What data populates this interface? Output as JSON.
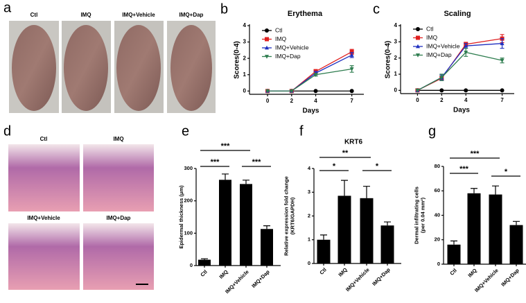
{
  "panel_labels": [
    "a",
    "b",
    "c",
    "d",
    "e",
    "f",
    "g"
  ],
  "photos_a": [
    "Ctl",
    "IMQ",
    "IMQ+Vehicle",
    "IMQ+Dap"
  ],
  "photos_d": [
    "Ctl",
    "IMQ",
    "IMQ+Vehicle",
    "IMQ+Dap"
  ],
  "chart_data": [
    {
      "type": "line",
      "title": "Erythema",
      "x_label": "Days",
      "y_label": "Scores(0-4)",
      "x": [
        0,
        2,
        4,
        7
      ],
      "xlim": [
        -1.5,
        8
      ],
      "xticks": [
        0,
        2,
        4,
        7
      ],
      "ylim": [
        -0.2,
        4
      ],
      "yticks": [
        0,
        1,
        2,
        3,
        4
      ],
      "series": [
        {
          "name": "Ctl",
          "color": "#000000",
          "marker": "circle",
          "values": [
            0,
            0,
            0,
            0
          ],
          "errors": [
            0,
            0,
            0,
            0
          ]
        },
        {
          "name": "IMQ",
          "color": "#e02020",
          "marker": "square",
          "values": [
            0,
            0,
            1.2,
            2.4
          ],
          "errors": [
            0,
            0,
            0.12,
            0.15
          ]
        },
        {
          "name": "IMQ+Vehicle",
          "color": "#2030c0",
          "marker": "triangle",
          "values": [
            0,
            0,
            1.1,
            2.2
          ],
          "errors": [
            0,
            0,
            0.1,
            0.15
          ]
        },
        {
          "name": "IMQ+Dap",
          "color": "#2e7d4f",
          "marker": "triangle-down",
          "values": [
            0,
            0,
            1.0,
            1.35
          ],
          "errors": [
            0,
            0,
            0.08,
            0.2
          ]
        }
      ]
    },
    {
      "type": "line",
      "title": "Scaling",
      "x_label": "Days",
      "y_label": "Scores(0-4)",
      "x": [
        0,
        2,
        4,
        7
      ],
      "xlim": [
        -1.4,
        8
      ],
      "xticks": [
        0,
        2,
        4,
        7
      ],
      "ylim": [
        -0.2,
        4
      ],
      "yticks": [
        0,
        1,
        2,
        3,
        4
      ],
      "series": [
        {
          "name": "Ctl",
          "color": "#000000",
          "marker": "circle",
          "values": [
            0,
            0,
            0,
            0
          ],
          "errors": [
            0,
            0,
            0,
            0
          ]
        },
        {
          "name": "IMQ",
          "color": "#e02020",
          "marker": "square",
          "values": [
            0,
            0.75,
            2.85,
            3.2
          ],
          "errors": [
            0,
            0.12,
            0.12,
            0.25
          ]
        },
        {
          "name": "IMQ+Vehicle",
          "color": "#2030c0",
          "marker": "triangle",
          "values": [
            0,
            0.8,
            2.75,
            2.9
          ],
          "errors": [
            0,
            0.15,
            0.15,
            0.3
          ]
        },
        {
          "name": "IMQ+Dap",
          "color": "#2e7d4f",
          "marker": "triangle-down",
          "values": [
            0,
            0.8,
            2.35,
            1.85
          ],
          "errors": [
            0,
            0.2,
            0.25,
            0.15
          ]
        }
      ]
    },
    {
      "type": "bar",
      "y_label": [
        "Epidermal thickness (μm)"
      ],
      "color": "#000000",
      "categories": [
        "Ctl",
        "IMQ",
        "IMQ+Vehicle",
        "IMQ+Dap"
      ],
      "values": [
        18,
        265,
        252,
        113
      ],
      "errors": [
        3,
        18,
        12,
        10
      ],
      "ylim": [
        0,
        300
      ],
      "yticks": [
        0,
        100,
        200,
        300
      ],
      "significance": [
        "***",
        "***",
        "***"
      ]
    },
    {
      "type": "bar",
      "title": "KRT6",
      "y_label": [
        "Relative expression fold change",
        "(KRT6/GAPDH)"
      ],
      "color": "#000000",
      "categories": [
        "Ctl",
        "IMQ",
        "IMQ+Vehicle",
        "IMQ+Dap"
      ],
      "values": [
        1.0,
        2.85,
        2.75,
        1.6
      ],
      "errors": [
        0.2,
        0.65,
        0.5,
        0.15
      ],
      "ylim": [
        0,
        4
      ],
      "yticks": [
        0,
        1,
        2,
        3,
        4
      ],
      "significance": [
        "**",
        "*",
        "*"
      ]
    },
    {
      "type": "bar",
      "y_label": [
        "Dermal infiltrating cells",
        "(per 0.04 mm²)"
      ],
      "color": "#000000",
      "categories": [
        "Ctl",
        "IMQ",
        "IMQ+Vehicle",
        "IMQ+Dap"
      ],
      "values": [
        16,
        58,
        57,
        32
      ],
      "errors": [
        3,
        4,
        7,
        3
      ],
      "ylim": [
        0,
        80
      ],
      "yticks": [
        0,
        20,
        40,
        60,
        80
      ],
      "significance": [
        "***",
        "***",
        "*"
      ]
    }
  ]
}
